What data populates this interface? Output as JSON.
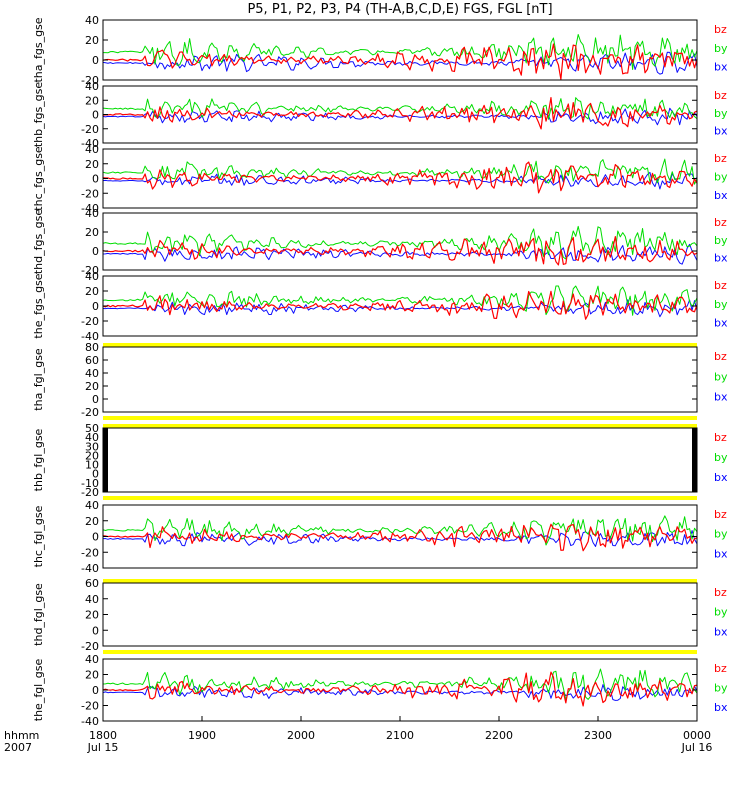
{
  "chart_data": {
    "type": "line",
    "title": "P5, P1, P2, P3, P4 (TH-A,B,C,D,E) FGS, FGL [nT]",
    "colors": {
      "bx": "#0000ff",
      "by": "#00dd00",
      "bz": "#ff0000",
      "flag": "#ffff00",
      "block": "#000000",
      "axis": "#000000"
    },
    "legend": [
      "bz",
      "by",
      "bx"
    ],
    "x_axis": {
      "label_left": "hhmm",
      "label_left_sub": "2007",
      "range_hours": [
        0,
        6
      ],
      "ticks": [
        {
          "value": 0,
          "label": "1800",
          "sublabel": "Jul 15"
        },
        {
          "value": 1,
          "label": "1900",
          "sublabel": ""
        },
        {
          "value": 2,
          "label": "2000",
          "sublabel": ""
        },
        {
          "value": 3,
          "label": "2100",
          "sublabel": ""
        },
        {
          "value": 4,
          "label": "2200",
          "sublabel": ""
        },
        {
          "value": 5,
          "label": "2300",
          "sublabel": ""
        },
        {
          "value": 6,
          "label": "0000",
          "sublabel": "Jul 16"
        }
      ]
    },
    "panels": [
      {
        "ylabel": "tha_fgs_gse",
        "ylim": [
          -20,
          40
        ],
        "yticks": [
          -20,
          0,
          20,
          40
        ],
        "kind": "data",
        "series": [
          {
            "name": "bx",
            "mean": -3,
            "amp": 8
          },
          {
            "name": "by",
            "mean": 8,
            "amp": 12
          },
          {
            "name": "bz",
            "mean": 0,
            "amp": 14
          }
        ]
      },
      {
        "ylabel": "thb_fgs_gse",
        "ylim": [
          -40,
          40
        ],
        "yticks": [
          -40,
          -20,
          0,
          20,
          40
        ],
        "kind": "data",
        "series": [
          {
            "name": "bx",
            "mean": -3,
            "amp": 8
          },
          {
            "name": "by",
            "mean": 8,
            "amp": 14
          },
          {
            "name": "bz",
            "mean": 0,
            "amp": 16
          }
        ]
      },
      {
        "ylabel": "thc_fgs_gse",
        "ylim": [
          -40,
          40
        ],
        "yticks": [
          -40,
          -20,
          0,
          20,
          40
        ],
        "kind": "data",
        "series": [
          {
            "name": "bx",
            "mean": -3,
            "amp": 8
          },
          {
            "name": "by",
            "mean": 8,
            "amp": 14
          },
          {
            "name": "bz",
            "mean": 0,
            "amp": 16
          }
        ]
      },
      {
        "ylabel": "thd_fgs_gse",
        "ylim": [
          -20,
          40
        ],
        "yticks": [
          -20,
          0,
          20,
          40
        ],
        "kind": "data",
        "series": [
          {
            "name": "bx",
            "mean": -3,
            "amp": 8
          },
          {
            "name": "by",
            "mean": 8,
            "amp": 12
          },
          {
            "name": "bz",
            "mean": 0,
            "amp": 14
          }
        ]
      },
      {
        "ylabel": "the_fgs_gse",
        "ylim": [
          -40,
          40
        ],
        "yticks": [
          -40,
          -20,
          0,
          20,
          40
        ],
        "kind": "data",
        "series": [
          {
            "name": "bx",
            "mean": -3,
            "amp": 8
          },
          {
            "name": "by",
            "mean": 8,
            "amp": 14
          },
          {
            "name": "bz",
            "mean": 0,
            "amp": 16
          }
        ]
      },
      {
        "ylabel": "tha_fgl_gse",
        "ylim": [
          -20,
          80
        ],
        "yticks": [
          -20,
          0,
          20,
          40,
          60,
          80
        ],
        "kind": "empty",
        "series": []
      },
      {
        "ylabel": "thb_fgl_gse",
        "ylim": [
          -20,
          50
        ],
        "yticks": [
          -20,
          -10,
          0,
          10,
          20,
          30,
          40,
          50
        ],
        "kind": "edges",
        "series": []
      },
      {
        "ylabel": "thc_fgl_gse",
        "ylim": [
          -40,
          40
        ],
        "yticks": [
          -40,
          -20,
          0,
          20,
          40
        ],
        "kind": "data",
        "series": [
          {
            "name": "bx",
            "mean": -3,
            "amp": 8
          },
          {
            "name": "by",
            "mean": 8,
            "amp": 14
          },
          {
            "name": "bz",
            "mean": 0,
            "amp": 16
          }
        ]
      },
      {
        "ylabel": "thd_fgl_gse",
        "ylim": [
          -20,
          60
        ],
        "yticks": [
          -20,
          0,
          20,
          40,
          60
        ],
        "kind": "empty",
        "series": []
      },
      {
        "ylabel": "the_fgl_gse",
        "ylim": [
          -40,
          40
        ],
        "yticks": [
          -40,
          -20,
          0,
          20,
          40
        ],
        "kind": "data",
        "series": [
          {
            "name": "bx",
            "mean": -3,
            "amp": 8
          },
          {
            "name": "by",
            "mean": 8,
            "amp": 14
          },
          {
            "name": "bz",
            "mean": 0,
            "amp": 16
          }
        ]
      }
    ]
  }
}
